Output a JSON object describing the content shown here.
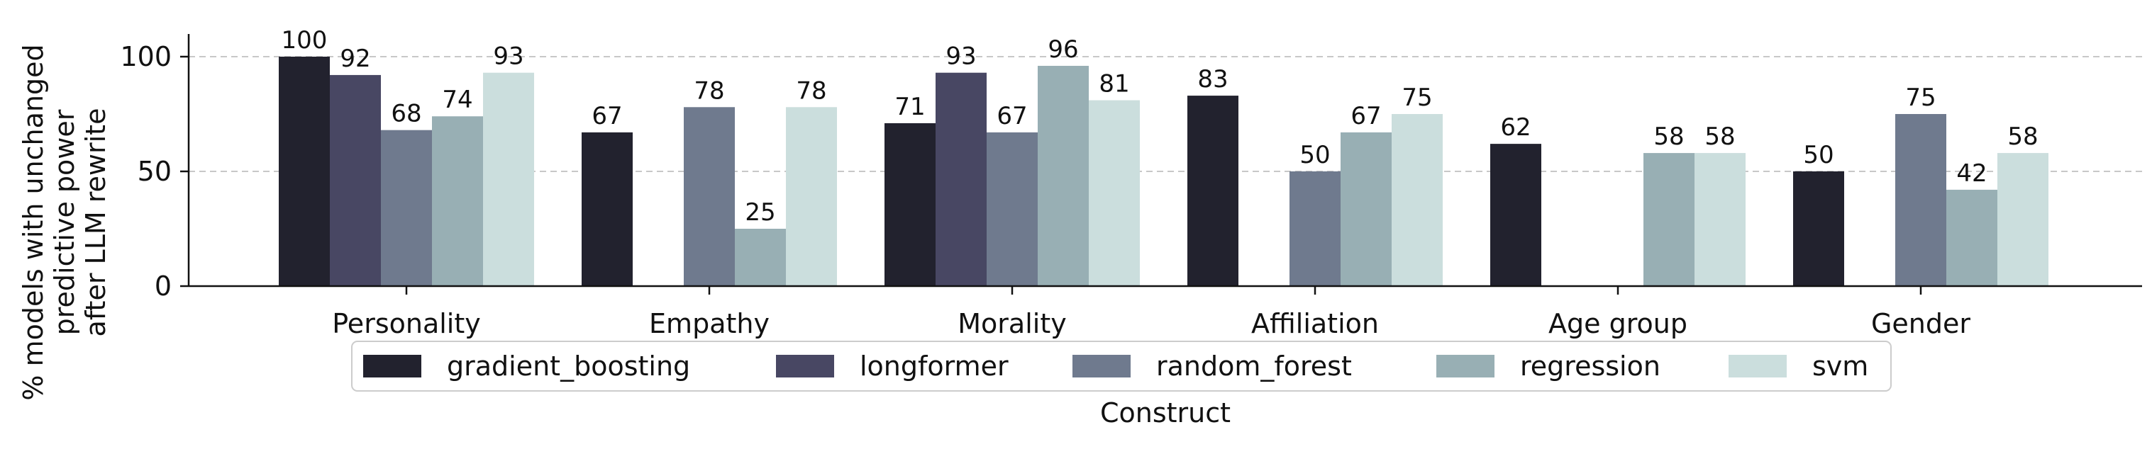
{
  "chart_data": {
    "type": "bar",
    "xlabel": "Construct",
    "ylabel": [
      "% models with unchanged",
      "predictive power",
      "after LLM rewrite"
    ],
    "ylim": [
      0,
      100
    ],
    "yticks": [
      0,
      50,
      100
    ],
    "grid": "horizontal dashed at 50 and 100",
    "legend_placement": "bottom-center",
    "categories": [
      "Personality",
      "Empathy",
      "Morality",
      "Affiliation",
      "Age group",
      "Gender"
    ],
    "series": [
      {
        "name": "gradient_boosting",
        "color": "#22222e",
        "values": [
          100,
          67,
          71,
          83,
          62,
          50
        ]
      },
      {
        "name": "longformer",
        "color": "#484763",
        "values": [
          92,
          null,
          93,
          null,
          null,
          null
        ]
      },
      {
        "name": "random_forest",
        "color": "#6f7a8e",
        "values": [
          68,
          78,
          67,
          50,
          null,
          75
        ]
      },
      {
        "name": "regression",
        "color": "#98afb4",
        "values": [
          74,
          25,
          96,
          67,
          58,
          42
        ]
      },
      {
        "name": "svm",
        "color": "#cbdedd",
        "values": [
          93,
          78,
          81,
          75,
          58,
          58
        ]
      }
    ]
  }
}
